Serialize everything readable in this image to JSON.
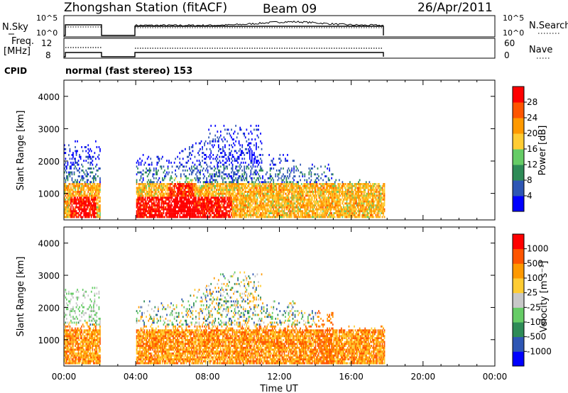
{
  "header": {
    "station": "Zhongshan Station (fitACF)",
    "beam": "Beam 09",
    "date": "26/Apr/2011"
  },
  "top_panels": {
    "nsky": {
      "label": "N.Sky",
      "ticks": [
        "10^5",
        "10^0"
      ],
      "right_ticks": [
        "10^5",
        "10^0"
      ],
      "right_label": "N.Search"
    },
    "freq": {
      "label_line1": "Freq.",
      "label_line2": "[MHz]",
      "ticks": [
        "12",
        "8"
      ],
      "right_ticks": [
        "60",
        "0"
      ],
      "right_label": "Nave"
    },
    "cpid": {
      "label": "CPID",
      "value": "normal (fast stereo) 153"
    }
  },
  "colors": {
    "power": [
      "#0000ff",
      "#2e56b4",
      "#2e8b57",
      "#66cc66",
      "#ffcc33",
      "#ff9900",
      "#ff5500",
      "#ff0000"
    ],
    "velocity": [
      "#0000ff",
      "#2e56b4",
      "#2e8b57",
      "#66cc66",
      "#c8c8c8",
      "#ffcc33",
      "#ff9900",
      "#ff5500",
      "#ff0000"
    ]
  },
  "chart_data": [
    {
      "type": "heatmap",
      "panel": "power",
      "xlabel": "",
      "ylabel": "Slant Range [km]",
      "xlim": [
        "00:00",
        "24:00"
      ],
      "ylim": [
        180,
        4500
      ],
      "yticks": [
        1000,
        2000,
        3000,
        4000
      ],
      "colorbar_label": "Power [dB]",
      "colorbar_ticks": [
        "28",
        "24",
        "20",
        "16",
        "12",
        "8",
        "4"
      ],
      "data_gaps": [
        [
          "02:00",
          "04:00"
        ],
        [
          "17:50",
          "24:00"
        ]
      ]
    },
    {
      "type": "heatmap",
      "panel": "velocity",
      "xlabel": "Time UT",
      "ylabel": "Slant Range [km]",
      "xlim": [
        "00:00",
        "24:00"
      ],
      "ylim": [
        180,
        4500
      ],
      "yticks": [
        1000,
        2000,
        3000,
        4000
      ],
      "xticks": [
        "00:00",
        "04:00",
        "08:00",
        "12:00",
        "16:00",
        "20:00",
        "00:00"
      ],
      "colorbar_label": "Velocity [m s⁻¹]",
      "colorbar_ticks": [
        "1000",
        "500",
        "100",
        "25",
        "-25",
        "-100",
        "-500",
        "-1000"
      ],
      "data_gaps": [
        [
          "02:00",
          "04:00"
        ],
        [
          "17:50",
          "24:00"
        ]
      ]
    }
  ]
}
